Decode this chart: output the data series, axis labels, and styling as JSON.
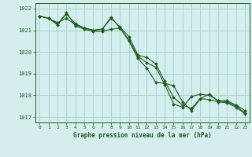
{
  "title": "Graphe pression niveau de la mer (hPa)",
  "bg_color": "#d4eeed",
  "grid_color": "#a8d4d0",
  "line_color": "#1e5c1e",
  "marker_color": "#1e5c1e",
  "xlim": [
    -0.5,
    23.5
  ],
  "ylim": [
    1016.75,
    1022.25
  ],
  "yticks": [
    1017,
    1018,
    1019,
    1020,
    1021,
    1022
  ],
  "xticks": [
    0,
    1,
    2,
    3,
    4,
    5,
    6,
    7,
    8,
    9,
    10,
    11,
    12,
    13,
    14,
    15,
    16,
    17,
    18,
    19,
    20,
    21,
    22,
    23
  ],
  "series1_x": [
    0,
    1,
    2,
    3,
    4,
    5,
    6,
    7,
    8,
    9,
    10,
    11,
    12,
    13,
    14,
    15,
    16,
    17,
    18,
    19,
    20,
    21,
    22,
    23
  ],
  "series1_y": [
    1021.65,
    1021.55,
    1021.35,
    1021.55,
    1021.25,
    1021.1,
    1021.0,
    1021.05,
    1021.55,
    1021.15,
    1020.7,
    1019.85,
    1019.75,
    1019.45,
    1018.65,
    1017.9,
    1017.55,
    1017.4,
    1017.85,
    1018.05,
    1017.75,
    1017.75,
    1017.55,
    1017.3
  ],
  "series2_x": [
    0,
    1,
    2,
    3,
    4,
    5,
    6,
    7,
    8,
    9,
    10,
    11,
    12,
    13,
    14,
    15,
    16,
    17,
    18,
    19,
    20,
    21,
    22,
    23
  ],
  "series2_y": [
    1021.65,
    1021.55,
    1021.3,
    1021.75,
    1021.3,
    1021.1,
    1021.0,
    1021.05,
    1021.6,
    1021.1,
    1020.55,
    1019.8,
    1019.5,
    1019.3,
    1018.5,
    1017.6,
    1017.45,
    1017.95,
    1018.05,
    1018.0,
    1017.75,
    1017.7,
    1017.5,
    1017.2
  ],
  "series3_x": [
    0,
    1,
    2,
    3,
    4,
    5,
    6,
    7,
    8,
    9,
    10,
    11,
    12,
    13,
    14,
    15,
    16,
    17,
    18,
    19,
    20,
    21,
    22,
    23
  ],
  "series3_y": [
    1021.65,
    1021.55,
    1021.25,
    1021.8,
    1021.2,
    1021.05,
    1020.95,
    1020.95,
    1021.05,
    1021.1,
    1020.5,
    1019.7,
    1019.25,
    1018.6,
    1018.55,
    1018.45,
    1017.7,
    1017.3,
    1017.85,
    1017.8,
    1017.7,
    1017.65,
    1017.45,
    1017.15
  ]
}
